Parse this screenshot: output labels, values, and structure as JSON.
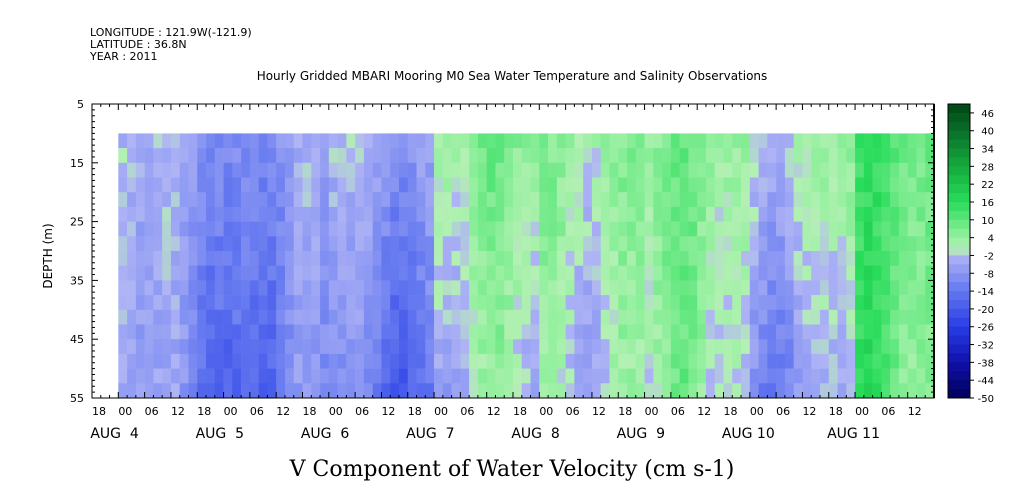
{
  "header": {
    "longitude": "LONGITUDE : 121.9W(-121.9)",
    "latitude": "LATITUDE : 36.8N",
    "year": "YEAR : 2011"
  },
  "chart_data": {
    "type": "heatmap",
    "title": "Hourly Gridded MBARI Mooring M0 Sea Water Temperature and Salinity Observations",
    "xlabel": "V Component of Water Velocity (cm s-1)",
    "ylabel": "DEPTH (m)",
    "ylim": [
      55,
      5
    ],
    "y_ticks": [
      5,
      15,
      25,
      35,
      45,
      55
    ],
    "x_hour_ticks": [
      "18",
      "00",
      "06",
      "12",
      "18",
      "00",
      "06",
      "12",
      "18",
      "00",
      "06",
      "12",
      "18",
      "00",
      "06",
      "12",
      "18",
      "00",
      "06",
      "12",
      "18",
      "00",
      "06",
      "12",
      "18",
      "00",
      "06",
      "12",
      "18",
      "00",
      "06",
      "12"
    ],
    "x_day_labels": [
      "AUG  4",
      "AUG  5",
      "AUG  6",
      "AUG  7",
      "AUG  8",
      "AUG  9",
      "AUG 10",
      "AUG 11"
    ],
    "x_start": "2011-08-03 18:00",
    "x_end": "2011-08-11 18:00",
    "data_start": "2011-08-04 00:00",
    "data_end": "2011-08-11 18:00",
    "data_depth_range": [
      10,
      55
    ],
    "colorbar": {
      "labels": [
        "46",
        "40",
        "34",
        "28",
        "22",
        "16",
        "10",
        "4",
        "-2",
        "-8",
        "-14",
        "-20",
        "-26",
        "-32",
        "-38",
        "-44",
        "-50"
      ],
      "range": [
        -50,
        49
      ],
      "step": 3
    },
    "daily_mean_v": [
      {
        "day": "AUG 4",
        "upper": -6,
        "lower": -10
      },
      {
        "day": "AUG 5",
        "upper": -8,
        "lower": -14
      },
      {
        "day": "AUG 6",
        "upper": -4,
        "lower": -12
      },
      {
        "day": "AUG 7",
        "upper": 4,
        "lower": -4
      },
      {
        "day": "AUG 8",
        "upper": 6,
        "lower": 2
      },
      {
        "day": "AUG 9",
        "upper": 4,
        "lower": 0
      },
      {
        "day": "AUG 10",
        "upper": 2,
        "lower": -6
      },
      {
        "day": "AUG 11",
        "upper": 10,
        "lower": 8
      }
    ],
    "colors": {
      "negative_strong": "#2020c8",
      "negative_light": "#a0a8f0",
      "positive_light": "#a8f0a8",
      "positive_strong": "#10c040",
      "axis": "#000000"
    }
  }
}
